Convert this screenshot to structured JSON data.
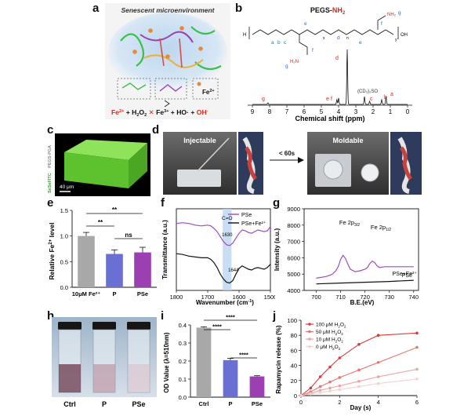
{
  "panel_labels": {
    "a": "a",
    "b": "b",
    "c": "c",
    "d": "d",
    "e": "e",
    "f": "f",
    "g": "g",
    "h": "h",
    "i": "i",
    "j": "j"
  },
  "panel_a": {
    "title": "Senescent microenvironment",
    "box3_label": "Fe",
    "box3_sup": "2+",
    "equation": {
      "fe2": "Fe",
      "fe2_sup": "2+",
      "plus1": " + H",
      "h2o2_sub1": "2",
      "o": "O",
      "h2o2_sub2": "2",
      "fe3": "Fe",
      "fe3_sup": "3+",
      "plus2": " + HO· + ",
      "oh": "OH",
      "oh_sup": "-"
    }
  },
  "panel_b": {
    "title_main": "PEGS-",
    "title_nh2": "NH",
    "title_nh2_sub": "2",
    "xlabel": "Chemical shift (ppm)",
    "xticks": [
      "9",
      "8",
      "7",
      "6",
      "5",
      "4",
      "3",
      "2",
      "1",
      "0"
    ],
    "peak_labels": {
      "g": "g",
      "d": "d",
      "e": "e",
      "f": "f",
      "c": "c",
      "b": "b",
      "a": "a",
      "solvent": "(CD₃)₂SO"
    },
    "structure_labels": {
      "a": "a",
      "b": "b",
      "c": "c",
      "d": "d",
      "e1": "e",
      "e2": "e",
      "f1": "f",
      "f2": "f",
      "g1": "g",
      "g2": "g",
      "x": "x",
      "y": "y",
      "n": "n",
      "nh2_top": "NH₂",
      "nh2_bot": "H₂N",
      "oh": "OH",
      "h": "H"
    }
  },
  "panel_c": {
    "side_label_1": "SeSeFITC",
    "side_label_2": "PEGS-PGA",
    "scalebar": "40 μm",
    "colors": {
      "green": "#6fd33a",
      "side1": "#2aa52a",
      "side2": "#888888"
    }
  },
  "panel_d": {
    "left_caption": "Injectable",
    "right_caption": "Moldable",
    "arrow_label": "< 60s"
  },
  "panel_e": {
    "ylabel_main": "Relative Fe",
    "ylabel_sup": "2+",
    "ylabel_end": " level",
    "sig_labels": [
      "**",
      "**",
      "ns"
    ],
    "colors": [
      "#a8a8a8",
      "#6a6fd4",
      "#9b3fb2"
    ],
    "chart_data": {
      "type": "bar",
      "categories": [
        "10μM Fe²⁺",
        "P",
        "PSe"
      ],
      "values": [
        1.0,
        0.65,
        0.68
      ],
      "errors": [
        0.07,
        0.08,
        0.1
      ],
      "ylim": [
        0.0,
        1.5
      ],
      "yticks": [
        "0.0",
        "0.5",
        "1.0",
        "1.5"
      ]
    }
  },
  "panel_f": {
    "ylabel": "Transmittance (a.u.)",
    "xlabel": "Wavenumber (cm",
    "xlabel_sup": "-1",
    "xlabel_end": ")",
    "annotation": "C=O",
    "peak1": "1630",
    "peak2": "1644",
    "legend": [
      "PSe",
      "PSe+Fe²⁺"
    ],
    "colors": [
      "#a04bc0",
      "#111111"
    ],
    "chart_data": {
      "type": "line",
      "xticks": [
        "1800",
        "1700",
        "1600",
        "1500"
      ],
      "xlim": [
        1800,
        1500
      ],
      "series": [
        {
          "name": "PSe",
          "x": [
            1800,
            1780,
            1760,
            1740,
            1720,
            1700,
            1690,
            1680,
            1670,
            1660,
            1650,
            1640,
            1630,
            1620,
            1610,
            1600,
            1590,
            1580,
            1570,
            1560,
            1550,
            1540,
            1530,
            1520,
            1510,
            1500
          ],
          "y": [
            0.82,
            0.83,
            0.82,
            0.8,
            0.79,
            0.8,
            0.79,
            0.76,
            0.72,
            0.66,
            0.6,
            0.56,
            0.55,
            0.58,
            0.64,
            0.7,
            0.74,
            0.73,
            0.71,
            0.7,
            0.72,
            0.74,
            0.73,
            0.72,
            0.73,
            0.78
          ]
        },
        {
          "name": "PSe+Fe²⁺",
          "x": [
            1800,
            1780,
            1760,
            1740,
            1720,
            1700,
            1690,
            1680,
            1670,
            1660,
            1650,
            1640,
            1630,
            1620,
            1610,
            1600,
            1590,
            1580,
            1570,
            1560,
            1550,
            1540,
            1530,
            1520,
            1510,
            1500
          ],
          "y": [
            0.45,
            0.44,
            0.42,
            0.41,
            0.4,
            0.4,
            0.38,
            0.34,
            0.28,
            0.2,
            0.14,
            0.1,
            0.09,
            0.12,
            0.2,
            0.27,
            0.3,
            0.28,
            0.26,
            0.25,
            0.27,
            0.28,
            0.27,
            0.26,
            0.28,
            0.32
          ]
        }
      ]
    }
  },
  "panel_g": {
    "ylabel": "Intensity (a.u.)",
    "xlabel": "B.E.(eV)",
    "peak1_main": "Fe 2p",
    "peak1_sub": "3/2",
    "peak2_main": "Fe 2p",
    "peak2_sub": "1/2",
    "series_labels": [
      "PSe+Fe²⁺",
      "PSe"
    ],
    "colors": [
      "#a04bc0",
      "#111111"
    ],
    "chart_data": {
      "type": "line",
      "xticks": [
        "700",
        "710",
        "720",
        "730",
        "740"
      ],
      "yticks": [
        "4000",
        "5000",
        "6000",
        "7000",
        "8000",
        "9000"
      ],
      "xlim": [
        695,
        742
      ],
      "ylim": [
        4000,
        9000
      ],
      "series": [
        {
          "name": "PSe+Fe²⁺",
          "x": [
            700,
            702,
            704,
            706,
            707,
            708,
            709,
            710,
            711,
            712,
            713,
            714,
            716,
            718,
            720,
            721,
            722,
            723,
            724,
            725,
            726,
            728,
            730,
            732,
            735,
            738,
            740
          ],
          "y": [
            4750,
            4800,
            4850,
            4950,
            5050,
            5200,
            5450,
            5900,
            6150,
            5950,
            5600,
            5300,
            5150,
            5200,
            5300,
            5400,
            5650,
            5800,
            5700,
            5500,
            5400,
            5450,
            5450,
            5450,
            5450,
            5450,
            5450
          ]
        },
        {
          "name": "PSe",
          "x": [
            700,
            710,
            720,
            730,
            740
          ],
          "y": [
            4400,
            4450,
            4500,
            4550,
            4620
          ]
        }
      ]
    }
  },
  "panel_h": {
    "labels": [
      "Ctrl",
      "P",
      "PSe"
    ]
  },
  "panel_i": {
    "ylabel": "OD Value (λ=510nm)",
    "sig_labels": [
      "****",
      "****",
      "****"
    ],
    "colors": [
      "#a8a8a8",
      "#6a6fd4",
      "#9b3fb2"
    ],
    "chart_data": {
      "type": "bar",
      "categories": [
        "Ctrl",
        "P",
        "PSe"
      ],
      "values": [
        0.385,
        0.205,
        0.115
      ],
      "errors": [
        0.005,
        0.01,
        0.004
      ],
      "ylim": [
        0.0,
        0.4
      ],
      "yticks": [
        "0.0",
        "0.1",
        "0.2",
        "0.3",
        "0.4"
      ]
    }
  },
  "panel_j": {
    "ylabel": "Rapamycin release (%)",
    "xlabel": "Day (s)",
    "legend": [
      {
        "num": "100",
        "unit": " μM H",
        "sub1": "2",
        "o": "O",
        "sub2": "2"
      },
      {
        "num": "50",
        "unit": " μM H",
        "sub1": "2",
        "o": "O",
        "sub2": "2"
      },
      {
        "num": "10",
        "unit": " μM H",
        "sub1": "2",
        "o": "O",
        "sub2": "2"
      },
      {
        "num": "0",
        "unit": " μM H",
        "sub1": "2",
        "o": "O",
        "sub2": "2"
      }
    ],
    "colors": [
      "#d93b3b",
      "#e57676",
      "#eda3a3",
      "#f5d0d0"
    ],
    "chart_data": {
      "type": "line",
      "xticks": [
        "0",
        "2",
        "4",
        "6"
      ],
      "yticks": [
        "0",
        "20",
        "40",
        "60",
        "80",
        "100"
      ],
      "xlim": [
        0,
        6
      ],
      "ylim": [
        0,
        100
      ],
      "series": [
        {
          "name": "100 μM H₂O₂",
          "x": [
            0,
            0.5,
            1,
            1.5,
            2,
            3,
            4,
            6
          ],
          "y": [
            0,
            10,
            25,
            38,
            50,
            68,
            80,
            83
          ]
        },
        {
          "name": "50 μM H₂O₂",
          "x": [
            0,
            0.5,
            1,
            1.5,
            2,
            3,
            4,
            6
          ],
          "y": [
            0,
            5,
            12,
            18,
            24,
            34,
            44,
            64
          ]
        },
        {
          "name": "10 μM H₂O₂",
          "x": [
            0,
            0.5,
            1,
            1.5,
            2,
            3,
            4,
            6
          ],
          "y": [
            0,
            3,
            7,
            10,
            13,
            19,
            25,
            35
          ]
        },
        {
          "name": "0 μM H₂O₂",
          "x": [
            0,
            0.5,
            1,
            1.5,
            2,
            3,
            4,
            6
          ],
          "y": [
            0,
            2,
            4,
            6,
            8,
            12,
            16,
            22
          ]
        }
      ]
    }
  }
}
